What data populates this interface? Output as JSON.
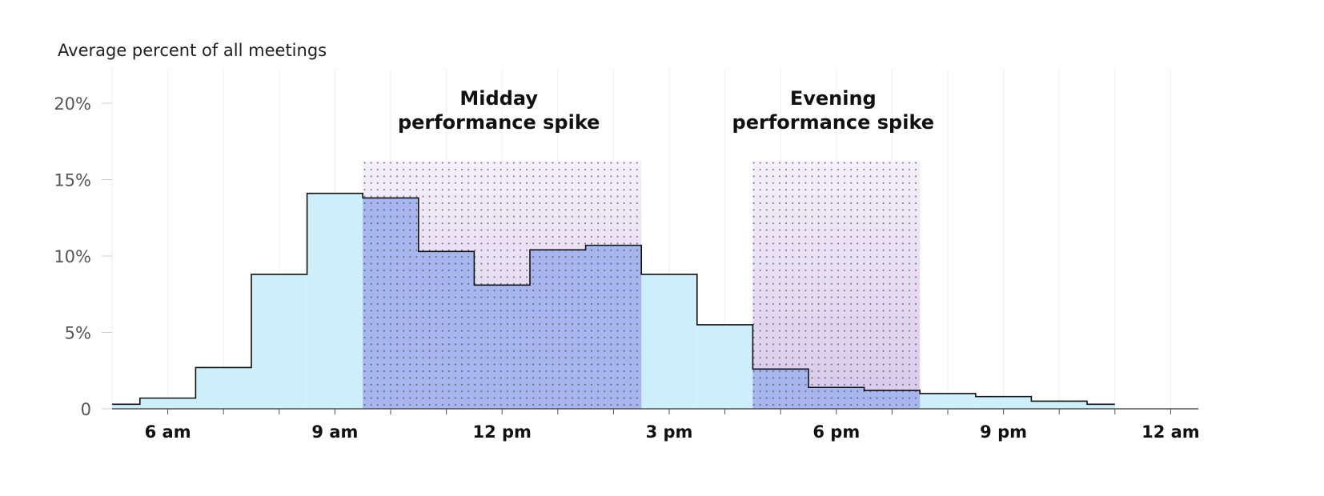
{
  "chart_data": {
    "type": "area",
    "ylabel": "Average percent of all meetings",
    "yticks": [
      {
        "value": 0,
        "label": "0"
      },
      {
        "value": 5,
        "label": "5%"
      },
      {
        "value": 10,
        "label": "10%"
      },
      {
        "value": 15,
        "label": "15%"
      },
      {
        "value": 20,
        "label": "20%"
      }
    ],
    "xticks": [
      {
        "hour": 6,
        "label": "6 am"
      },
      {
        "hour": 9,
        "label": "9 am"
      },
      {
        "hour": 12,
        "label": "12 pm"
      },
      {
        "hour": 15,
        "label": "3 pm"
      },
      {
        "hour": 18,
        "label": "6 pm"
      },
      {
        "hour": 21,
        "label": "9 pm"
      },
      {
        "hour": 24,
        "label": "12 am"
      }
    ],
    "xlim": [
      5,
      24.5
    ],
    "ylim": [
      0,
      20
    ],
    "series": [
      {
        "bins": [
          {
            "start": 5.0,
            "end": 5.5,
            "value": 0.3
          },
          {
            "start": 5.5,
            "end": 6.5,
            "value": 0.7
          },
          {
            "start": 6.5,
            "end": 7.5,
            "value": 2.7
          },
          {
            "start": 7.5,
            "end": 8.5,
            "value": 8.8
          },
          {
            "start": 8.5,
            "end": 9.5,
            "value": 14.1
          },
          {
            "start": 9.5,
            "end": 10.5,
            "value": 13.8
          },
          {
            "start": 10.5,
            "end": 11.5,
            "value": 10.3
          },
          {
            "start": 11.5,
            "end": 12.5,
            "value": 8.1
          },
          {
            "start": 12.5,
            "end": 13.5,
            "value": 10.4
          },
          {
            "start": 13.5,
            "end": 14.5,
            "value": 10.7
          },
          {
            "start": 14.5,
            "end": 15.5,
            "value": 8.8
          },
          {
            "start": 15.5,
            "end": 16.5,
            "value": 5.5
          },
          {
            "start": 16.5,
            "end": 17.5,
            "value": 2.6
          },
          {
            "start": 17.5,
            "end": 18.5,
            "value": 1.4
          },
          {
            "start": 18.5,
            "end": 19.5,
            "value": 1.2
          },
          {
            "start": 19.5,
            "end": 20.5,
            "value": 1.0
          },
          {
            "start": 20.5,
            "end": 21.5,
            "value": 0.8
          },
          {
            "start": 21.5,
            "end": 22.5,
            "value": 0.5
          },
          {
            "start": 22.5,
            "end": 23.0,
            "value": 0.3
          }
        ]
      }
    ],
    "highlights": [
      {
        "start": 9.5,
        "end": 14.5,
        "top": 16.2,
        "title_line1": "Midday",
        "title_line2": "performance spike"
      },
      {
        "start": 16.5,
        "end": 19.5,
        "top": 16.2,
        "title_line1": "Evening",
        "title_line2": "performance spike"
      }
    ],
    "grid": "vertical, hourly",
    "colors": {
      "fill": "#cdeffc",
      "line": "#111111",
      "grid": "#eeeeee",
      "highlight_top": "#f4f0fa",
      "highlight_bottom": "#d7c8ea",
      "highlight_overlap": "#a0acec",
      "dots": "#444444"
    }
  }
}
